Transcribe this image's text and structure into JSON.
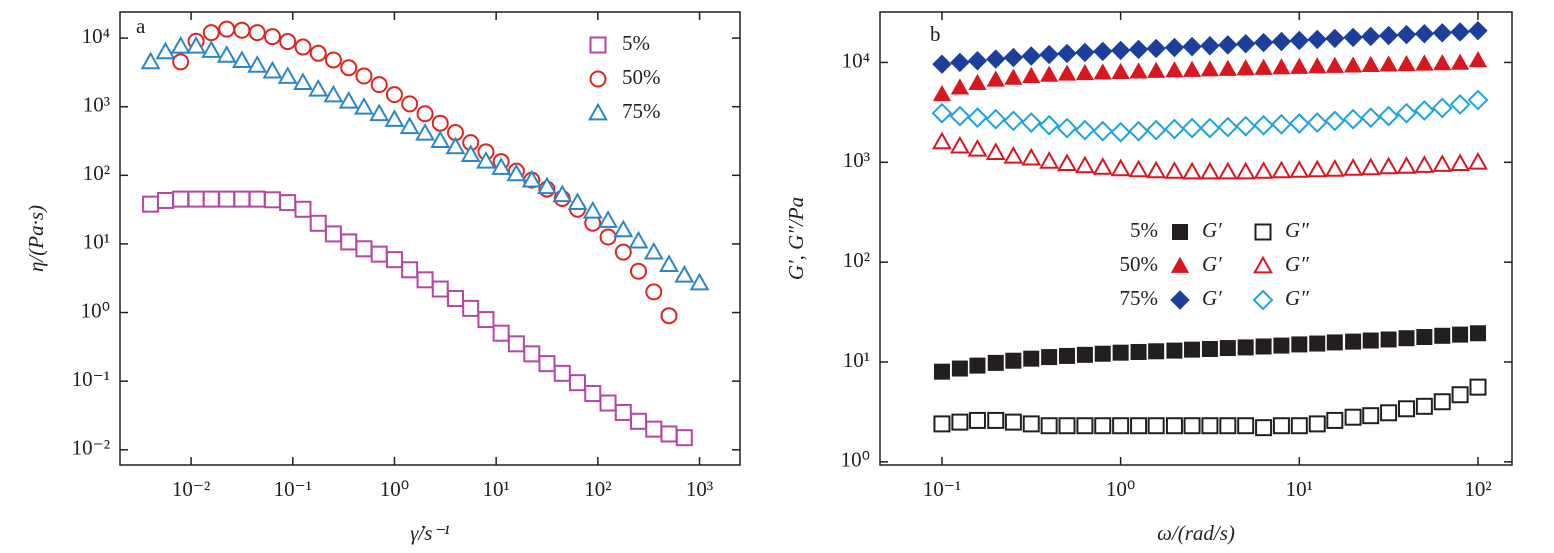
{
  "chart_data": [
    {
      "type": "scatter",
      "panel": "a",
      "xlabel": "γ̇/s⁻¹",
      "ylabel": "η/(Pa·s)",
      "log_x": true,
      "log_y": true,
      "legend": "upper right",
      "xlim": [
        0.002,
        2500
      ],
      "ylim": [
        0.006,
        24000
      ],
      "xticks": [
        {
          "value": 0.01,
          "label": "10⁻²"
        },
        {
          "value": 0.1,
          "label": "10⁻¹"
        },
        {
          "value": 1,
          "label": "10⁰"
        },
        {
          "value": 10,
          "label": "10¹"
        },
        {
          "value": 100,
          "label": "10²"
        },
        {
          "value": 1000,
          "label": "10³"
        }
      ],
      "yticks": [
        {
          "value": 0.01,
          "label": "10⁻²"
        },
        {
          "value": 0.1,
          "label": "10⁻¹"
        },
        {
          "value": 1,
          "label": "10⁰"
        },
        {
          "value": 10,
          "label": "10¹"
        },
        {
          "value": 100,
          "label": "10²"
        },
        {
          "value": 1000,
          "label": "10³"
        },
        {
          "value": 10000,
          "label": "10⁴"
        }
      ],
      "series": [
        {
          "name": "5%",
          "color": "#b4479f",
          "marker": "square",
          "filled": false,
          "x": [
            0.004,
            0.0056,
            0.0079,
            0.0112,
            0.0158,
            0.0224,
            0.0316,
            0.0447,
            0.0631,
            0.0891,
            0.126,
            0.178,
            0.251,
            0.355,
            0.501,
            0.708,
            1,
            1.41,
            2,
            2.82,
            3.98,
            5.62,
            7.94,
            11.2,
            15.8,
            22.4,
            31.6,
            44.7,
            63.1,
            89.1,
            126,
            178,
            251,
            355,
            501,
            708
          ],
          "values": [
            38,
            43,
            45,
            45,
            45,
            45,
            45,
            45,
            44,
            40,
            32,
            20,
            14,
            10.7,
            8.5,
            7.1,
            5.9,
            4.2,
            3.0,
            2.2,
            1.6,
            1.15,
            0.79,
            0.5,
            0.35,
            0.25,
            0.18,
            0.13,
            0.095,
            0.066,
            0.048,
            0.035,
            0.026,
            0.02,
            0.017,
            0.015
          ]
        },
        {
          "name": "50%",
          "color": "#e0251f",
          "marker": "circle",
          "filled": false,
          "x": [
            0.0079,
            0.0112,
            0.0158,
            0.0224,
            0.0316,
            0.0447,
            0.0631,
            0.0891,
            0.126,
            0.178,
            0.251,
            0.355,
            0.501,
            0.708,
            1,
            1.41,
            2,
            2.82,
            3.98,
            5.62,
            7.94,
            11.2,
            15.8,
            22.4,
            31.6,
            44.7,
            63.1,
            89.1,
            126,
            178,
            251,
            355,
            501
          ],
          "values": [
            4500,
            9000,
            12000,
            13500,
            13000,
            12000,
            10500,
            8900,
            7400,
            6000,
            4800,
            3700,
            2800,
            2100,
            1500,
            1100,
            790,
            575,
            420,
            300,
            220,
            158,
            115,
            85,
            63,
            46,
            32,
            20,
            12.6,
            7.6,
            4.0,
            2.0,
            0.9
          ]
        },
        {
          "name": "75%",
          "color": "#2b86c8",
          "marker": "triangle",
          "filled": false,
          "x": [
            0.004,
            0.0056,
            0.0079,
            0.0112,
            0.0158,
            0.0224,
            0.0316,
            0.0447,
            0.0631,
            0.0891,
            0.126,
            0.178,
            0.251,
            0.355,
            0.501,
            0.708,
            1,
            1.41,
            2,
            2.82,
            3.98,
            5.62,
            7.94,
            11.2,
            15.8,
            22.4,
            31.6,
            44.7,
            63.1,
            89.1,
            126,
            178,
            251,
            355,
            501,
            708,
            1000
          ],
          "values": [
            4500,
            6300,
            7600,
            7600,
            6600,
            5600,
            4700,
            4000,
            3300,
            2750,
            2240,
            1800,
            1480,
            1200,
            980,
            790,
            650,
            510,
            410,
            320,
            260,
            200,
            160,
            130,
            105,
            85,
            68,
            52,
            40,
            30,
            22,
            16,
            11,
            7.6,
            5.0,
            3.5,
            2.7
          ]
        }
      ]
    },
    {
      "type": "scatter",
      "panel": "b",
      "xlabel": "ω/(rad/s)",
      "ylabel": "G′, G″/Pa",
      "log_x": true,
      "log_y": true,
      "legend": "center",
      "xlim": [
        0.045,
        155
      ],
      "ylim": [
        0.93,
        32000
      ],
      "xticks": [
        {
          "value": 0.1,
          "label": "10⁻¹"
        },
        {
          "value": 1,
          "label": "10⁰"
        },
        {
          "value": 10,
          "label": "10¹"
        },
        {
          "value": 100,
          "label": "10²"
        }
      ],
      "yticks": [
        {
          "value": 1,
          "label": "10⁰"
        },
        {
          "value": 10,
          "label": "10¹"
        },
        {
          "value": 100,
          "label": "10²"
        },
        {
          "value": 1000,
          "label": "10³"
        },
        {
          "value": 10000,
          "label": "10⁴"
        }
      ],
      "x": [
        0.1,
        0.126,
        0.158,
        0.2,
        0.251,
        0.316,
        0.398,
        0.501,
        0.631,
        0.794,
        1,
        1.26,
        1.58,
        2,
        2.51,
        3.16,
        3.98,
        5.01,
        6.31,
        7.94,
        10,
        12.6,
        15.8,
        20,
        25.1,
        31.6,
        39.8,
        50.1,
        63.1,
        79.4,
        100
      ],
      "series": [
        {
          "name": "5%",
          "moduli": [
            {
              "name": "G′",
              "color": "#231f20",
              "marker": "square",
              "filled": true,
              "values": [
                8,
                8.6,
                9.2,
                9.8,
                10.3,
                10.8,
                11.2,
                11.5,
                11.8,
                12.1,
                12.4,
                12.6,
                12.8,
                13,
                13.3,
                13.5,
                13.8,
                14,
                14.3,
                14.6,
                15,
                15.3,
                15.7,
                16,
                16.4,
                16.8,
                17.3,
                17.8,
                18.3,
                18.8,
                19.4
              ]
            },
            {
              "name": "G″",
              "color": "#231f20",
              "marker": "square",
              "filled": false,
              "values": [
                2.4,
                2.5,
                2.6,
                2.6,
                2.5,
                2.4,
                2.3,
                2.3,
                2.3,
                2.3,
                2.3,
                2.3,
                2.3,
                2.3,
                2.3,
                2.3,
                2.3,
                2.3,
                2.2,
                2.3,
                2.3,
                2.4,
                2.6,
                2.8,
                2.9,
                3.1,
                3.4,
                3.6,
                4.0,
                4.7,
                5.6
              ]
            }
          ]
        },
        {
          "name": "50%",
          "moduli": [
            {
              "name": "G′",
              "color": "#d9171f",
              "marker": "triangle",
              "filled": true,
              "values": [
                4800,
                5600,
                6200,
                6700,
                7000,
                7300,
                7500,
                7700,
                7800,
                7900,
                8000,
                8100,
                8200,
                8300,
                8400,
                8500,
                8600,
                8700,
                8800,
                8900,
                9000,
                9100,
                9200,
                9300,
                9400,
                9500,
                9600,
                9700,
                9800,
                9900,
                10500
              ]
            },
            {
              "name": "G″",
              "color": "#d9171f",
              "marker": "triangle",
              "filled": false,
              "values": [
                1600,
                1450,
                1350,
                1250,
                1150,
                1100,
                1020,
                970,
                920,
                890,
                860,
                840,
                820,
                810,
                800,
                800,
                800,
                800,
                810,
                820,
                830,
                840,
                850,
                870,
                880,
                900,
                910,
                930,
                950,
                970,
                1000
              ]
            }
          ]
        },
        {
          "name": "75%",
          "moduli": [
            {
              "name": "G′",
              "color": "#1b3f9a",
              "marker": "diamond",
              "filled": true,
              "values": [
                9600,
                10000,
                10400,
                10800,
                11200,
                11600,
                12000,
                12300,
                12600,
                12900,
                13200,
                13500,
                13800,
                14100,
                14400,
                14700,
                15000,
                15400,
                15800,
                16200,
                16600,
                17000,
                17400,
                17800,
                18200,
                18600,
                19000,
                19400,
                19800,
                20200,
                20800
              ]
            },
            {
              "name": "G″",
              "color": "#1ea3e0",
              "marker": "diamond",
              "filled": false,
              "values": [
                3100,
                2900,
                2800,
                2700,
                2600,
                2500,
                2350,
                2200,
                2100,
                2050,
                2000,
                2050,
                2100,
                2150,
                2200,
                2200,
                2250,
                2300,
                2350,
                2400,
                2450,
                2500,
                2600,
                2700,
                2800,
                2900,
                3100,
                3300,
                3500,
                3800,
                4200
              ]
            }
          ]
        }
      ]
    }
  ]
}
